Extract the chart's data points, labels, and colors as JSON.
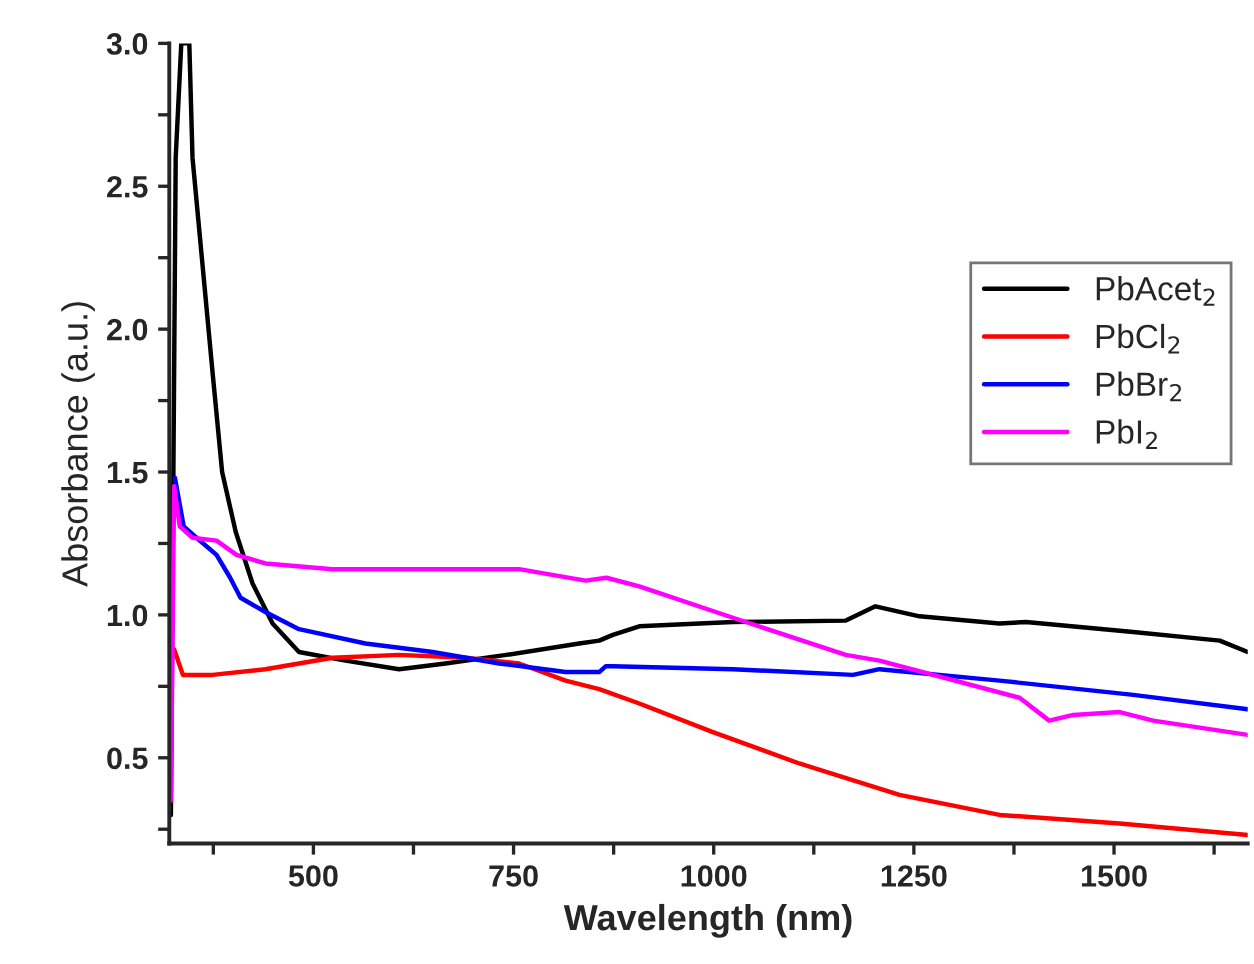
{
  "chart_data": {
    "type": "line",
    "xlabel": "Wavelength (nm)",
    "ylabel": "Absorbance (a.u.)",
    "xlim": [
      320,
      1667
    ],
    "ylim": [
      0.2,
      3.0
    ],
    "xticks": [
      {
        "value": 375,
        "label": null
      },
      500,
      {
        "value": 625,
        "label": null
      },
      750,
      {
        "value": 875,
        "label": null
      },
      1000,
      {
        "value": 1125,
        "label": null
      },
      1250,
      {
        "value": 1375,
        "label": null
      },
      1500,
      {
        "value": 1625,
        "label": null
      }
    ],
    "yticks": [
      {
        "value": 0.25,
        "label": null
      },
      0.5,
      {
        "value": 0.75,
        "label": null
      },
      {
        "value": 1,
        "label": "1.0"
      },
      {
        "value": 1.25,
        "label": null
      },
      1.5,
      {
        "value": 1.75,
        "label": null
      },
      {
        "value": 2,
        "label": "2.0"
      },
      {
        "value": 2.25,
        "label": null
      },
      2.5,
      {
        "value": 2.75,
        "label": null
      },
      {
        "value": 3,
        "label": "3.0"
      }
    ],
    "grid": false,
    "legend": "right",
    "marker": "none",
    "line_style": "solid",
    "series": [
      {
        "name": "PbAcet$_{2}$",
        "color": "#000000",
        "x": [
          322,
          328,
          335,
          345,
          349,
          374,
          386,
          403,
          424,
          449,
          482,
          540,
          607,
          665,
          741,
          832,
          857,
          874,
          907,
          1024,
          1165,
          1202,
          1257,
          1357,
          1390,
          1524,
          1632,
          1667
        ],
        "values": [
          0.3,
          2.6,
          3.0,
          3.0,
          2.6,
          1.85,
          1.5,
          1.29,
          1.11,
          0.97,
          0.87,
          0.84,
          0.81,
          0.83,
          0.86,
          0.9,
          0.91,
          0.93,
          0.96,
          0.975,
          0.98,
          1.03,
          0.995,
          0.97,
          0.975,
          0.94,
          0.91,
          0.87
        ]
      },
      {
        "name": "PbCl$_{2}$",
        "color": "#ff0000",
        "x": [
          326,
          337,
          374,
          440,
          524,
          607,
          690,
          757,
          815,
          857,
          907,
          999,
          1107,
          1232,
          1357,
          1507,
          1667
        ],
        "values": [
          0.88,
          0.79,
          0.79,
          0.81,
          0.85,
          0.86,
          0.85,
          0.83,
          0.77,
          0.74,
          0.69,
          0.59,
          0.48,
          0.37,
          0.3,
          0.27,
          0.23
        ]
      },
      {
        "name": "PbBr$_{2}$",
        "color": "#0000ff",
        "x": [
          327,
          338,
          354,
          379,
          396,
          409,
          440,
          482,
          565,
          649,
          732,
          815,
          857,
          865,
          874,
          1024,
          1174,
          1207,
          1357,
          1524,
          1667
        ],
        "values": [
          1.48,
          1.31,
          1.27,
          1.21,
          1.13,
          1.06,
          1.01,
          0.95,
          0.9,
          0.87,
          0.83,
          0.8,
          0.8,
          0.82,
          0.82,
          0.81,
          0.79,
          0.81,
          0.77,
          0.72,
          0.67
        ]
      },
      {
        "name": "PbI$_{2}$",
        "color": "#ff00ff",
        "x": [
          322,
          326,
          333,
          349,
          379,
          404,
          440,
          524,
          690,
          757,
          840,
          866,
          907,
          1024,
          1165,
          1207,
          1382,
          1419,
          1449,
          1507,
          1549,
          1667
        ],
        "values": [
          0.35,
          1.45,
          1.31,
          1.27,
          1.26,
          1.21,
          1.18,
          1.16,
          1.16,
          1.16,
          1.12,
          1.13,
          1.1,
          0.99,
          0.86,
          0.84,
          0.71,
          0.63,
          0.65,
          0.66,
          0.63,
          0.58
        ]
      }
    ]
  }
}
